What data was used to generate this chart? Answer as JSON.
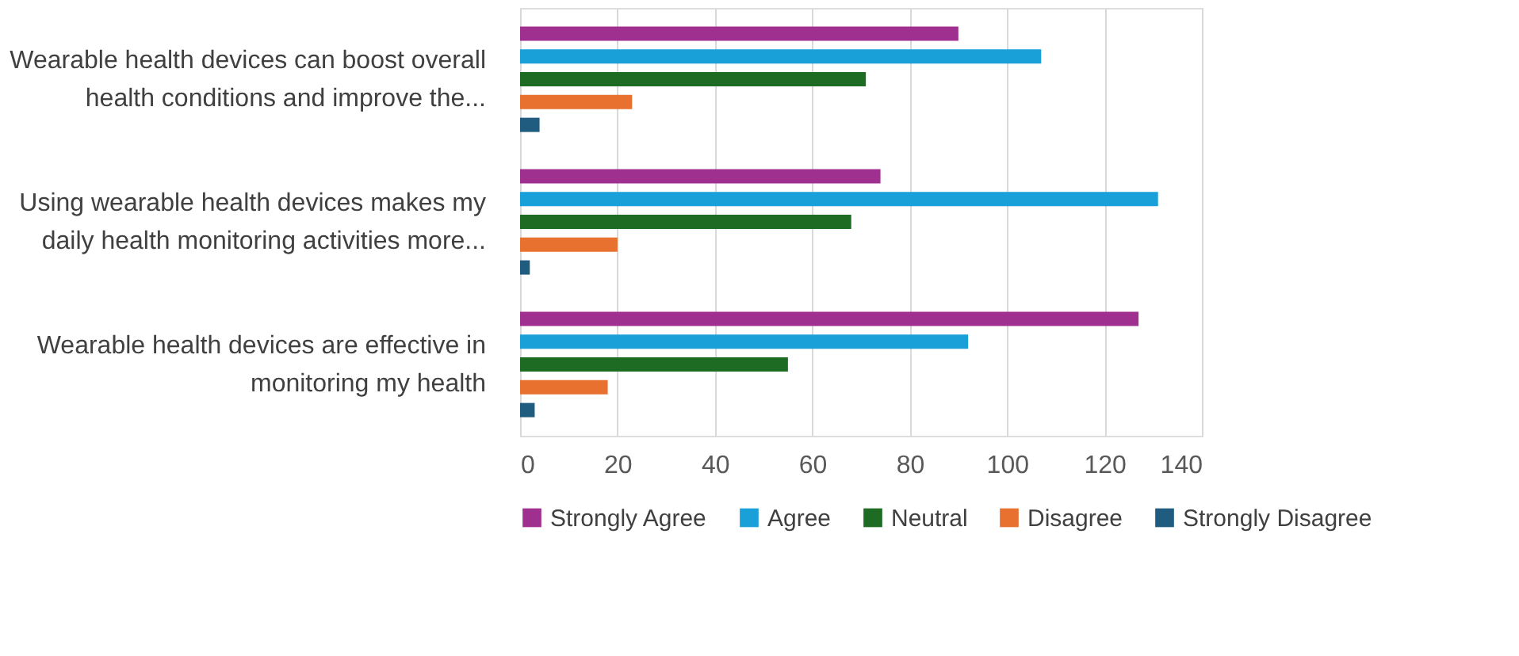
{
  "chart_data": {
    "type": "bar",
    "orientation": "horizontal",
    "categories": [
      "Wearable health devices can boost overall health conditions and improve the...",
      "Using wearable health devices makes my daily health monitoring activities more...",
      "Wearable health devices are effective in monitoring my health"
    ],
    "series": [
      {
        "name": "Strongly Agree",
        "color": "#a0308f",
        "values": [
          90,
          74,
          127
        ]
      },
      {
        "name": "Agree",
        "color": "#1aa0d8",
        "values": [
          107,
          131,
          92
        ]
      },
      {
        "name": "Neutral",
        "color": "#1e6b24",
        "values": [
          71,
          68,
          55
        ]
      },
      {
        "name": "Disagree",
        "color": "#e8712f",
        "values": [
          23,
          20,
          18
        ]
      },
      {
        "name": "Strongly Disagree",
        "color": "#1f5c80",
        "values": [
          4,
          2,
          3
        ]
      }
    ],
    "xlim": [
      0,
      140
    ],
    "xticks": [
      0,
      20,
      40,
      60,
      80,
      100,
      120,
      140
    ],
    "grid": "x",
    "legend": "bottom"
  }
}
